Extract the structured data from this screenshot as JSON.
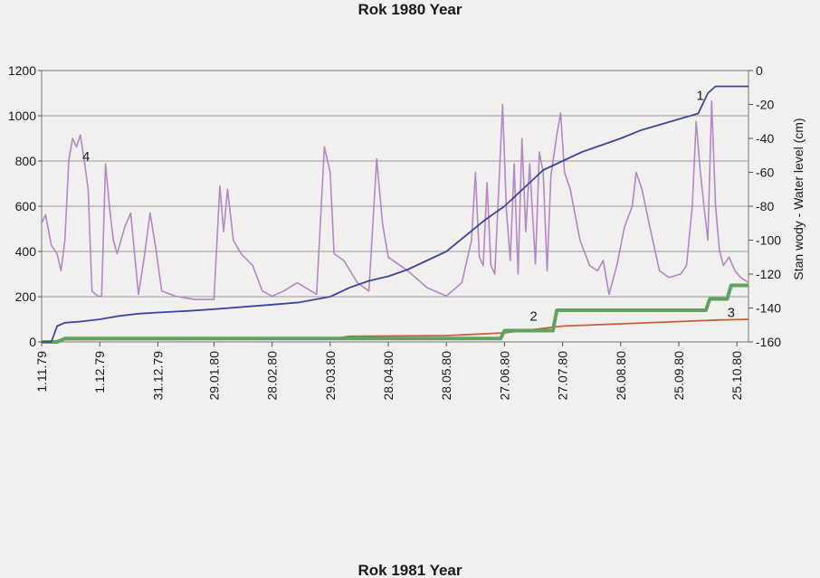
{
  "chart_data": {
    "type": "line",
    "title": "Rok 1980 Year",
    "bottom_title": "Rok 1981 Year",
    "ylabel_right": "Stan wody - Water level (cm)",
    "ylim_left": [
      0,
      1200
    ],
    "yticks_left": [
      0,
      200,
      400,
      600,
      800,
      1000,
      1200
    ],
    "ylim_right": [
      -160,
      0
    ],
    "yticks_right": [
      -160,
      -140,
      -120,
      -100,
      -80,
      -60,
      -40,
      -20,
      0
    ],
    "x_start": "1979-11-01",
    "x_end": "1980-10-31",
    "x_tick_labels": [
      "1.11.79",
      "1.12.79",
      "31.12.79",
      "29.01.80",
      "28.02.80",
      "29.03.80",
      "28.04.80",
      "28.05.80",
      "27.06.80",
      "27.07.80",
      "26.08.80",
      "25.09.80",
      "25.10.80"
    ],
    "x_tick_dates": [
      "1979-11-01",
      "1979-12-01",
      "1979-12-31",
      "1980-01-29",
      "1980-02-28",
      "1980-03-29",
      "1980-04-28",
      "1980-05-28",
      "1980-06-27",
      "1980-07-27",
      "1980-08-26",
      "1980-09-25",
      "1980-10-25"
    ],
    "grid": true,
    "legend": "none",
    "series": [
      {
        "name": "1",
        "axis": "left",
        "color": "#3c46a0",
        "points": [
          [
            "1979-11-01",
            0
          ],
          [
            "1979-11-06",
            0
          ],
          [
            "1979-11-09",
            70
          ],
          [
            "1979-11-13",
            85
          ],
          [
            "1979-11-21",
            90
          ],
          [
            "1979-12-01",
            100
          ],
          [
            "1979-12-11",
            115
          ],
          [
            "1979-12-21",
            125
          ],
          [
            "1979-12-31",
            130
          ],
          [
            "1980-01-15",
            137
          ],
          [
            "1980-01-29",
            145
          ],
          [
            "1980-02-13",
            155
          ],
          [
            "1980-02-28",
            165
          ],
          [
            "1980-03-13",
            175
          ],
          [
            "1980-03-29",
            200
          ],
          [
            "1980-04-08",
            240
          ],
          [
            "1980-04-18",
            270
          ],
          [
            "1980-04-28",
            290
          ],
          [
            "1980-05-08",
            320
          ],
          [
            "1980-05-18",
            360
          ],
          [
            "1980-05-28",
            400
          ],
          [
            "1980-06-07",
            470
          ],
          [
            "1980-06-17",
            540
          ],
          [
            "1980-06-27",
            600
          ],
          [
            "1980-07-07",
            680
          ],
          [
            "1980-07-17",
            760
          ],
          [
            "1980-07-27",
            800
          ],
          [
            "1980-08-06",
            840
          ],
          [
            "1980-08-16",
            870
          ],
          [
            "1980-08-26",
            900
          ],
          [
            "1980-09-05",
            935
          ],
          [
            "1980-09-15",
            960
          ],
          [
            "1980-09-25",
            985
          ],
          [
            "1980-10-05",
            1010
          ],
          [
            "1980-10-10",
            1100
          ],
          [
            "1980-10-14",
            1130
          ],
          [
            "1980-10-31",
            1130
          ]
        ]
      },
      {
        "name": "2",
        "axis": "left",
        "color": "#5fa35f",
        "points": [
          [
            "1979-11-01",
            0
          ],
          [
            "1979-11-09",
            0
          ],
          [
            "1979-11-13",
            15
          ],
          [
            "1980-06-25",
            15
          ],
          [
            "1980-06-27",
            50
          ],
          [
            "1980-07-22",
            50
          ],
          [
            "1980-07-24",
            140
          ],
          [
            "1980-10-09",
            140
          ],
          [
            "1980-10-11",
            190
          ],
          [
            "1980-10-20",
            190
          ],
          [
            "1980-10-22",
            250
          ],
          [
            "1980-10-31",
            250
          ]
        ]
      },
      {
        "name": "3",
        "axis": "left",
        "color": "#c8613a",
        "points": [
          [
            "1979-11-01",
            0
          ],
          [
            "1979-11-09",
            0
          ],
          [
            "1979-11-13",
            10
          ],
          [
            "1980-03-29",
            12
          ],
          [
            "1980-04-08",
            25
          ],
          [
            "1980-05-28",
            28
          ],
          [
            "1980-06-27",
            40
          ],
          [
            "1980-07-27",
            70
          ],
          [
            "1980-08-26",
            80
          ],
          [
            "1980-09-25",
            90
          ],
          [
            "1980-10-15",
            97
          ],
          [
            "1980-10-31",
            100
          ]
        ]
      },
      {
        "name": "4",
        "axis": "right",
        "color": "#b487c6",
        "points": [
          [
            "1979-11-01",
            -90
          ],
          [
            "1979-11-03",
            -85
          ],
          [
            "1979-11-06",
            -103
          ],
          [
            "1979-11-09",
            -108
          ],
          [
            "1979-11-11",
            -118
          ],
          [
            "1979-11-13",
            -100
          ],
          [
            "1979-11-15",
            -53
          ],
          [
            "1979-11-17",
            -40
          ],
          [
            "1979-11-19",
            -45
          ],
          [
            "1979-11-21",
            -38
          ],
          [
            "1979-11-23",
            -53
          ],
          [
            "1979-11-25",
            -70
          ],
          [
            "1979-11-27",
            -130
          ],
          [
            "1979-11-30",
            -133
          ],
          [
            "1979-12-02",
            -133
          ],
          [
            "1979-12-04",
            -55
          ],
          [
            "1979-12-06",
            -80
          ],
          [
            "1979-12-08",
            -100
          ],
          [
            "1979-12-10",
            -108
          ],
          [
            "1979-12-14",
            -92
          ],
          [
            "1979-12-17",
            -84
          ],
          [
            "1979-12-19",
            -108
          ],
          [
            "1979-12-21",
            -132
          ],
          [
            "1979-12-24",
            -110
          ],
          [
            "1979-12-27",
            -84
          ],
          [
            "1979-12-30",
            -105
          ],
          [
            "1980-01-02",
            -130
          ],
          [
            "1980-01-09",
            -133
          ],
          [
            "1980-01-19",
            -135
          ],
          [
            "1980-01-29",
            -135
          ],
          [
            "1980-02-01",
            -68
          ],
          [
            "1980-02-03",
            -95
          ],
          [
            "1980-02-05",
            -70
          ],
          [
            "1980-02-08",
            -100
          ],
          [
            "1980-02-12",
            -108
          ],
          [
            "1980-02-18",
            -115
          ],
          [
            "1980-02-23",
            -130
          ],
          [
            "1980-02-28",
            -133
          ],
          [
            "1980-03-05",
            -130
          ],
          [
            "1980-03-12",
            -125
          ],
          [
            "1980-03-22",
            -132
          ],
          [
            "1980-03-26",
            -45
          ],
          [
            "1980-03-29",
            -60
          ],
          [
            "1980-03-31",
            -108
          ],
          [
            "1980-04-05",
            -112
          ],
          [
            "1980-04-12",
            -125
          ],
          [
            "1980-04-18",
            -130
          ],
          [
            "1980-04-22",
            -52
          ],
          [
            "1980-04-25",
            -90
          ],
          [
            "1980-04-28",
            -110
          ],
          [
            "1980-05-08",
            -118
          ],
          [
            "1980-05-18",
            -128
          ],
          [
            "1980-05-28",
            -133
          ],
          [
            "1980-06-05",
            -125
          ],
          [
            "1980-06-10",
            -100
          ],
          [
            "1980-06-12",
            -60
          ],
          [
            "1980-06-14",
            -110
          ],
          [
            "1980-06-16",
            -115
          ],
          [
            "1980-06-18",
            -66
          ],
          [
            "1980-06-20",
            -115
          ],
          [
            "1980-06-22",
            -120
          ],
          [
            "1980-06-24",
            -70
          ],
          [
            "1980-06-26",
            -20
          ],
          [
            "1980-06-28",
            -82
          ],
          [
            "1980-06-30",
            -112
          ],
          [
            "1980-07-02",
            -55
          ],
          [
            "1980-07-04",
            -120
          ],
          [
            "1980-07-06",
            -40
          ],
          [
            "1980-07-08",
            -95
          ],
          [
            "1980-07-10",
            -55
          ],
          [
            "1980-07-13",
            -114
          ],
          [
            "1980-07-15",
            -48
          ],
          [
            "1980-07-17",
            -60
          ],
          [
            "1980-07-19",
            -118
          ],
          [
            "1980-07-21",
            -62
          ],
          [
            "1980-07-24",
            -38
          ],
          [
            "1980-07-26",
            -25
          ],
          [
            "1980-07-28",
            -60
          ],
          [
            "1980-07-31",
            -70
          ],
          [
            "1980-08-05",
            -100
          ],
          [
            "1980-08-10",
            -115
          ],
          [
            "1980-08-14",
            -118
          ],
          [
            "1980-08-17",
            -112
          ],
          [
            "1980-08-20",
            -132
          ],
          [
            "1980-08-24",
            -115
          ],
          [
            "1980-08-28",
            -92
          ],
          [
            "1980-09-01",
            -80
          ],
          [
            "1980-09-03",
            -60
          ],
          [
            "1980-09-06",
            -70
          ],
          [
            "1980-09-10",
            -92
          ],
          [
            "1980-09-15",
            -118
          ],
          [
            "1980-09-20",
            -122
          ],
          [
            "1980-09-26",
            -120
          ],
          [
            "1980-09-29",
            -115
          ],
          [
            "1980-10-02",
            -80
          ],
          [
            "1980-10-04",
            -30
          ],
          [
            "1980-10-06",
            -58
          ],
          [
            "1980-10-08",
            -80
          ],
          [
            "1980-10-10",
            -100
          ],
          [
            "1980-10-12",
            -18
          ],
          [
            "1980-10-14",
            -80
          ],
          [
            "1980-10-16",
            -106
          ],
          [
            "1980-10-18",
            -115
          ],
          [
            "1980-10-21",
            -110
          ],
          [
            "1980-10-24",
            -118
          ],
          [
            "1980-10-27",
            -122
          ],
          [
            "1980-10-31",
            -125
          ]
        ]
      }
    ]
  }
}
